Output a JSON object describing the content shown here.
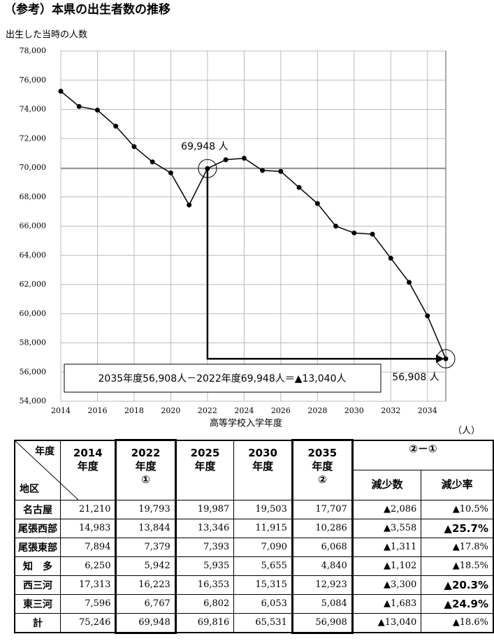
{
  "title": "（参考）本県の出生者数の推移",
  "chart_data": {
    "type": "line",
    "y_axis_label": "出生した当時の人数",
    "x_axis_label": "高等学校入学年度",
    "x": [
      2014,
      2015,
      2016,
      2017,
      2018,
      2019,
      2020,
      2021,
      2022,
      2023,
      2024,
      2025,
      2026,
      2027,
      2028,
      2029,
      2030,
      2031,
      2032,
      2033,
      2034,
      2035
    ],
    "values": [
      75246,
      74200,
      73950,
      72850,
      71450,
      70400,
      69650,
      67450,
      69948,
      70550,
      70650,
      69816,
      69750,
      68650,
      67550,
      66000,
      65531,
      65450,
      63800,
      62150,
      59850,
      56908
    ],
    "color": "#000000",
    "xlim": [
      2014,
      2035
    ],
    "ylim": [
      54000,
      78000
    ],
    "xticks": [
      2014,
      2016,
      2018,
      2020,
      2022,
      2024,
      2026,
      2028,
      2030,
      2032,
      2034
    ],
    "yticks": [
      {
        "value": 54000,
        "label": "54,000"
      },
      {
        "value": 56000,
        "label": "56,000"
      },
      {
        "value": 58000,
        "label": "58,000"
      },
      {
        "value": 60000,
        "label": "60,000"
      },
      {
        "value": 62000,
        "label": "62,000"
      },
      {
        "value": 64000,
        "label": "64,000"
      },
      {
        "value": 66000,
        "label": "66,000"
      },
      {
        "value": 68000,
        "label": "68,000"
      },
      {
        "value": 70000,
        "label": "70,000"
      },
      {
        "value": 72000,
        "label": "72,000"
      },
      {
        "value": 74000,
        "label": "74,000"
      },
      {
        "value": 76000,
        "label": "76,000"
      },
      {
        "value": 78000,
        "label": "78,000"
      }
    ],
    "grid": true,
    "annotations": {
      "start": "69,948 人",
      "end": "56,908 人",
      "formula": "2035年度56,908人－2022年度69,948人＝▲13,040人"
    }
  },
  "table": {
    "unit": "（人）",
    "corner": {
      "top": "年度",
      "bottom": "地区"
    },
    "columns": [
      [
        "2014",
        "年度"
      ],
      [
        "2022",
        "年度",
        "①"
      ],
      [
        "2025",
        "年度"
      ],
      [
        "2030",
        "年度"
      ],
      [
        "2035",
        "年度",
        "②"
      ]
    ],
    "diff_header": "②－①",
    "diff_columns": [
      "減少数",
      "減少率"
    ],
    "rows": [
      {
        "cells": [
          "名古屋",
          "21,210",
          "19,793",
          "19,987",
          "19,503",
          "17,707",
          "▲2,086",
          "▲10.5%"
        ],
        "emphasis": false
      },
      {
        "cells": [
          "尾張西部",
          "14,983",
          "13,844",
          "13,346",
          "11,915",
          "10,286",
          "▲3,558",
          "▲25.7%"
        ],
        "emphasis": true
      },
      {
        "cells": [
          "尾張東部",
          "7,894",
          "7,379",
          "7,393",
          "7,090",
          "6,068",
          "▲1,311",
          "▲17.8%"
        ],
        "emphasis": false
      },
      {
        "cells": [
          "知　多",
          "6,250",
          "5,942",
          "5,935",
          "5,655",
          "4,840",
          "▲1,102",
          "▲18.5%"
        ],
        "emphasis": false
      },
      {
        "cells": [
          "西三河",
          "17,313",
          "16,223",
          "16,353",
          "15,315",
          "12,923",
          "▲3,300",
          "▲20.3%"
        ],
        "emphasis": true
      },
      {
        "cells": [
          "東三河",
          "7,596",
          "6,767",
          "6,802",
          "6,053",
          "5,084",
          "▲1,683",
          "▲24.9%"
        ],
        "emphasis": true
      },
      {
        "cells": [
          "計",
          "75,246",
          "69,948",
          "69,816",
          "65,531",
          "56,908",
          "▲13,040",
          "▲18.6%"
        ],
        "emphasis": false
      }
    ]
  }
}
